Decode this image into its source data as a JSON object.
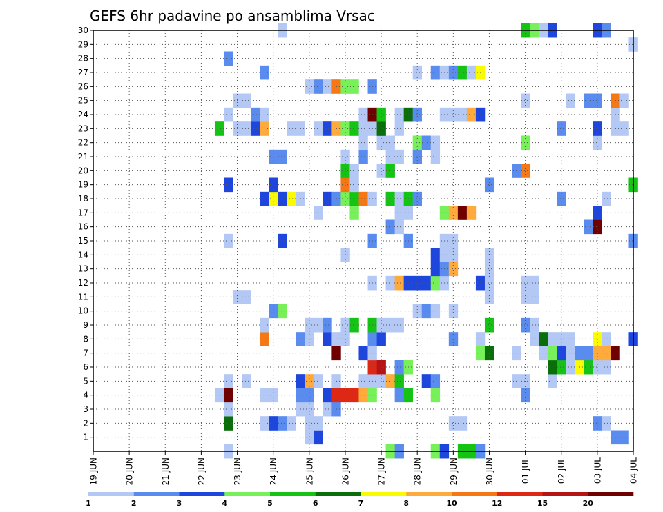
{
  "chart_data": {
    "type": "heatmap",
    "title": "GEFS 6hr padavine po ansamblima Vrsac",
    "x_start": "2025-06-19 00:00",
    "x_end": "2025-07-04 00:00",
    "x_tick_labels": [
      "19 JUN",
      "20 JUN",
      "21 JUN",
      "22 JUN",
      "23 JUN",
      "24 JUN",
      "25 JUN",
      "26 JUN",
      "27 JUN",
      "28 JUN",
      "29 JUN",
      "30 JUN",
      "01 JUL",
      "02 JUL",
      "03 JUL",
      "04 JUL"
    ],
    "y_ticks": [
      1,
      2,
      3,
      4,
      5,
      6,
      7,
      8,
      9,
      10,
      11,
      12,
      13,
      14,
      15,
      16,
      17,
      18,
      19,
      20,
      21,
      22,
      23,
      24,
      25,
      26,
      27,
      28,
      29,
      30
    ],
    "ylim": [
      0,
      30
    ],
    "grid": true,
    "legend": {
      "position": "bottom",
      "levels": [
        "1",
        "2",
        "3",
        "4",
        "5",
        "6",
        "7",
        "8",
        "10",
        "12",
        "15",
        "20"
      ],
      "colors": [
        "#b4c8f5",
        "#5a8cf0",
        "#1e46dc",
        "#78f05a",
        "#14c314",
        "#0a6e0a",
        "#fafa00",
        "#ffaa3c",
        "#f57814",
        "#dc2814",
        "#b41414",
        "#6e0000"
      ]
    },
    "cells": [
      [
        "06-22 18:00",
        0,
        0
      ],
      [
        "06-27 06:00",
        0,
        3
      ],
      [
        "06-27 12:00",
        0,
        1
      ],
      [
        "06-28 12:00",
        0,
        3
      ],
      [
        "06-28 18:00",
        0,
        2
      ],
      [
        "06-29 06:00",
        0,
        4
      ],
      [
        "06-29 12:00",
        0,
        4
      ],
      [
        "06-29 18:00",
        0,
        1
      ],
      [
        "06-25 00:00",
        1,
        0
      ],
      [
        "06-25 06:00",
        1,
        2
      ],
      [
        "07-03 12:00",
        1,
        1
      ],
      [
        "07-03 18:00",
        1,
        1
      ],
      [
        "06-22 18:00",
        2,
        5
      ],
      [
        "06-23 18:00",
        2,
        0
      ],
      [
        "06-24 00:00",
        2,
        2
      ],
      [
        "06-24 06:00",
        2,
        1
      ],
      [
        "06-24 12:00",
        2,
        0
      ],
      [
        "06-25 00:00",
        2,
        0
      ],
      [
        "06-25 06:00",
        2,
        0
      ],
      [
        "06-29 00:00",
        2,
        0
      ],
      [
        "06-29 06:00",
        2,
        0
      ],
      [
        "07-03 00:00",
        2,
        1
      ],
      [
        "07-03 06:00",
        2,
        0
      ],
      [
        "06-22 18:00",
        3,
        0
      ],
      [
        "06-24 18:00",
        3,
        0
      ],
      [
        "06-25 00:00",
        3,
        0
      ],
      [
        "06-25 12:00",
        3,
        0
      ],
      [
        "06-25 18:00",
        3,
        1
      ],
      [
        "06-22 12:00",
        4,
        0
      ],
      [
        "06-22 18:00",
        4,
        11
      ],
      [
        "06-23 18:00",
        4,
        0
      ],
      [
        "06-24 00:00",
        4,
        0
      ],
      [
        "06-24 18:00",
        4,
        1
      ],
      [
        "06-25 00:00",
        4,
        1
      ],
      [
        "06-25 12:00",
        4,
        2
      ],
      [
        "06-25 18:00",
        4,
        9
      ],
      [
        "06-26 00:00",
        4,
        9
      ],
      [
        "06-26 06:00",
        4,
        9
      ],
      [
        "06-26 12:00",
        4,
        7
      ],
      [
        "06-26 18:00",
        4,
        3
      ],
      [
        "06-27 12:00",
        4,
        1
      ],
      [
        "06-27 18:00",
        4,
        4
      ],
      [
        "06-28 12:00",
        4,
        3
      ],
      [
        "07-01 00:00",
        4,
        1
      ],
      [
        "06-22 18:00",
        5,
        0
      ],
      [
        "06-23 06:00",
        5,
        0
      ],
      [
        "06-24 18:00",
        5,
        2
      ],
      [
        "06-25 00:00",
        5,
        7
      ],
      [
        "06-25 06:00",
        5,
        0
      ],
      [
        "06-25 18:00",
        5,
        0
      ],
      [
        "06-26 12:00",
        5,
        0
      ],
      [
        "06-26 18:00",
        5,
        0
      ],
      [
        "06-27 00:00",
        5,
        0
      ],
      [
        "06-27 06:00",
        5,
        7
      ],
      [
        "06-27 12:00",
        5,
        4
      ],
      [
        "06-28 06:00",
        5,
        2
      ],
      [
        "06-28 12:00",
        5,
        1
      ],
      [
        "06-30 18:00",
        5,
        0
      ],
      [
        "07-01 00:00",
        5,
        0
      ],
      [
        "07-01 18:00",
        5,
        0
      ],
      [
        "06-26 18:00",
        6,
        9
      ],
      [
        "06-27 00:00",
        6,
        10
      ],
      [
        "06-27 12:00",
        6,
        1
      ],
      [
        "06-27 18:00",
        6,
        3
      ],
      [
        "07-01 18:00",
        6,
        5
      ],
      [
        "07-02 00:00",
        6,
        4
      ],
      [
        "07-02 06:00",
        6,
        0
      ],
      [
        "07-02 12:00",
        6,
        6
      ],
      [
        "07-02 18:00",
        6,
        4
      ],
      [
        "07-03 00:00",
        6,
        0
      ],
      [
        "07-03 06:00",
        6,
        0
      ],
      [
        "06-25 18:00",
        7,
        11
      ],
      [
        "06-26 12:00",
        7,
        2
      ],
      [
        "06-26 18:00",
        7,
        0
      ],
      [
        "06-29 18:00",
        7,
        3
      ],
      [
        "06-30 00:00",
        7,
        5
      ],
      [
        "06-30 18:00",
        7,
        0
      ],
      [
        "07-01 12:00",
        7,
        0
      ],
      [
        "07-01 18:00",
        7,
        3
      ],
      [
        "07-02 00:00",
        7,
        2
      ],
      [
        "07-02 06:00",
        7,
        0
      ],
      [
        "07-02 12:00",
        7,
        1
      ],
      [
        "07-02 18:00",
        7,
        1
      ],
      [
        "07-03 00:00",
        7,
        7
      ],
      [
        "07-03 06:00",
        7,
        7
      ],
      [
        "07-03 12:00",
        7,
        11
      ],
      [
        "06-23 18:00",
        8,
        8
      ],
      [
        "06-24 18:00",
        8,
        1
      ],
      [
        "06-25 00:00",
        8,
        0
      ],
      [
        "06-25 12:00",
        8,
        2
      ],
      [
        "06-25 18:00",
        8,
        0
      ],
      [
        "06-26 00:00",
        8,
        0
      ],
      [
        "06-26 18:00",
        8,
        1
      ],
      [
        "06-27 00:00",
        8,
        2
      ],
      [
        "06-29 00:00",
        8,
        1
      ],
      [
        "06-29 18:00",
        8,
        0
      ],
      [
        "07-01 06:00",
        8,
        0
      ],
      [
        "07-01 12:00",
        8,
        5
      ],
      [
        "07-01 18:00",
        8,
        0
      ],
      [
        "07-02 00:00",
        8,
        0
      ],
      [
        "07-02 06:00",
        8,
        0
      ],
      [
        "07-03 00:00",
        8,
        6
      ],
      [
        "07-03 06:00",
        8,
        0
      ],
      [
        "07-04 00:00",
        8,
        2
      ],
      [
        "06-23 18:00",
        9,
        0
      ],
      [
        "06-25 00:00",
        9,
        0
      ],
      [
        "06-25 06:00",
        9,
        0
      ],
      [
        "06-25 12:00",
        9,
        1
      ],
      [
        "06-26 00:00",
        9,
        0
      ],
      [
        "06-26 06:00",
        9,
        4
      ],
      [
        "06-26 18:00",
        9,
        4
      ],
      [
        "06-27 00:00",
        9,
        0
      ],
      [
        "06-27 06:00",
        9,
        0
      ],
      [
        "06-27 12:00",
        9,
        0
      ],
      [
        "06-30 00:00",
        9,
        4
      ],
      [
        "07-01 00:00",
        9,
        1
      ],
      [
        "07-01 06:00",
        9,
        0
      ],
      [
        "06-24 00:00",
        10,
        1
      ],
      [
        "06-24 06:00",
        10,
        3
      ],
      [
        "06-28 00:00",
        10,
        0
      ],
      [
        "06-28 06:00",
        10,
        1
      ],
      [
        "06-28 12:00",
        10,
        0
      ],
      [
        "06-29 00:00",
        10,
        0
      ],
      [
        "06-23 00:00",
        11,
        0
      ],
      [
        "06-23 06:00",
        11,
        0
      ],
      [
        "06-30 00:00",
        11,
        0
      ],
      [
        "07-01 00:00",
        11,
        0
      ],
      [
        "07-01 06:00",
        11,
        0
      ],
      [
        "06-26 18:00",
        12,
        0
      ],
      [
        "06-27 06:00",
        12,
        0
      ],
      [
        "06-27 12:00",
        12,
        7
      ],
      [
        "06-27 18:00",
        12,
        2
      ],
      [
        "06-28 00:00",
        12,
        2
      ],
      [
        "06-28 06:00",
        12,
        2
      ],
      [
        "06-28 12:00",
        12,
        3
      ],
      [
        "06-28 18:00",
        12,
        0
      ],
      [
        "06-29 18:00",
        12,
        2
      ],
      [
        "06-30 00:00",
        12,
        0
      ],
      [
        "07-01 00:00",
        12,
        0
      ],
      [
        "07-01 06:00",
        12,
        0
      ],
      [
        "06-28 12:00",
        13,
        2
      ],
      [
        "06-28 18:00",
        13,
        1
      ],
      [
        "06-29 00:00",
        13,
        7
      ],
      [
        "06-30 00:00",
        13,
        0
      ],
      [
        "06-26 00:00",
        14,
        0
      ],
      [
        "06-28 12:00",
        14,
        2
      ],
      [
        "06-28 18:00",
        14,
        0
      ],
      [
        "06-29 00:00",
        14,
        0
      ],
      [
        "06-30 00:00",
        14,
        0
      ],
      [
        "06-22 18:00",
        15,
        0
      ],
      [
        "06-24 06:00",
        15,
        2
      ],
      [
        "06-26 18:00",
        15,
        1
      ],
      [
        "06-27 18:00",
        15,
        1
      ],
      [
        "06-28 18:00",
        15,
        0
      ],
      [
        "06-29 00:00",
        15,
        0
      ],
      [
        "07-04 00:00",
        15,
        1
      ],
      [
        "06-27 06:00",
        16,
        1
      ],
      [
        "06-27 12:00",
        16,
        0
      ],
      [
        "07-02 18:00",
        16,
        1
      ],
      [
        "07-03 00:00",
        16,
        11
      ],
      [
        "06-25 06:00",
        17,
        0
      ],
      [
        "06-26 06:00",
        17,
        3
      ],
      [
        "06-27 12:00",
        17,
        0
      ],
      [
        "06-27 18:00",
        17,
        0
      ],
      [
        "06-28 18:00",
        17,
        3
      ],
      [
        "06-29 00:00",
        17,
        7
      ],
      [
        "06-29 06:00",
        17,
        11
      ],
      [
        "06-29 12:00",
        17,
        7
      ],
      [
        "07-03 00:00",
        17,
        2
      ],
      [
        "06-23 18:00",
        18,
        2
      ],
      [
        "06-24 00:00",
        18,
        6
      ],
      [
        "06-24 06:00",
        18,
        2
      ],
      [
        "06-24 12:00",
        18,
        6
      ],
      [
        "06-24 18:00",
        18,
        0
      ],
      [
        "06-25 12:00",
        18,
        2
      ],
      [
        "06-25 18:00",
        18,
        1
      ],
      [
        "06-26 00:00",
        18,
        3
      ],
      [
        "06-26 06:00",
        18,
        4
      ],
      [
        "06-26 12:00",
        18,
        8
      ],
      [
        "06-26 18:00",
        18,
        0
      ],
      [
        "06-27 06:00",
        18,
        4
      ],
      [
        "06-27 12:00",
        18,
        0
      ],
      [
        "06-27 18:00",
        18,
        4
      ],
      [
        "06-28 00:00",
        18,
        1
      ],
      [
        "07-02 00:00",
        18,
        1
      ],
      [
        "07-03 06:00",
        18,
        0
      ],
      [
        "06-22 18:00",
        19,
        2
      ],
      [
        "06-24 00:00",
        19,
        2
      ],
      [
        "06-26 00:00",
        19,
        8
      ],
      [
        "06-26 06:00",
        19,
        0
      ],
      [
        "06-30 00:00",
        19,
        1
      ],
      [
        "07-04 00:00",
        19,
        4
      ],
      [
        "06-26 00:00",
        20,
        4
      ],
      [
        "06-26 06:00",
        20,
        0
      ],
      [
        "06-27 00:00",
        20,
        0
      ],
      [
        "06-27 06:00",
        20,
        4
      ],
      [
        "06-30 18:00",
        20,
        1
      ],
      [
        "07-01 00:00",
        20,
        8
      ],
      [
        "06-24 00:00",
        21,
        1
      ],
      [
        "06-24 06:00",
        21,
        1
      ],
      [
        "06-26 00:00",
        21,
        0
      ],
      [
        "06-26 12:00",
        21,
        1
      ],
      [
        "06-27 06:00",
        21,
        0
      ],
      [
        "06-27 12:00",
        21,
        0
      ],
      [
        "06-28 00:00",
        21,
        1
      ],
      [
        "06-28 12:00",
        21,
        0
      ],
      [
        "06-26 12:00",
        22,
        0
      ],
      [
        "06-27 00:00",
        22,
        0
      ],
      [
        "06-27 06:00",
        22,
        0
      ],
      [
        "06-28 00:00",
        22,
        3
      ],
      [
        "06-28 06:00",
        22,
        1
      ],
      [
        "06-28 12:00",
        22,
        0
      ],
      [
        "07-01 00:00",
        22,
        3
      ],
      [
        "07-03 00:00",
        22,
        0
      ],
      [
        "06-22 12:00",
        23,
        4
      ],
      [
        "06-23 00:00",
        23,
        0
      ],
      [
        "06-23 06:00",
        23,
        0
      ],
      [
        "06-23 12:00",
        23,
        2
      ],
      [
        "06-23 18:00",
        23,
        7
      ],
      [
        "06-24 12:00",
        23,
        0
      ],
      [
        "06-24 18:00",
        23,
        0
      ],
      [
        "06-25 06:00",
        23,
        0
      ],
      [
        "06-25 12:00",
        23,
        2
      ],
      [
        "06-25 18:00",
        23,
        7
      ],
      [
        "06-26 00:00",
        23,
        3
      ],
      [
        "06-26 06:00",
        23,
        4
      ],
      [
        "06-26 12:00",
        23,
        0
      ],
      [
        "06-26 18:00",
        23,
        0
      ],
      [
        "06-27 00:00",
        23,
        5
      ],
      [
        "06-27 12:00",
        23,
        0
      ],
      [
        "07-02 00:00",
        23,
        1
      ],
      [
        "07-03 00:00",
        23,
        2
      ],
      [
        "07-03 12:00",
        23,
        0
      ],
      [
        "07-03 18:00",
        23,
        0
      ],
      [
        "06-22 18:00",
        24,
        0
      ],
      [
        "06-23 12:00",
        24,
        1
      ],
      [
        "06-23 18:00",
        24,
        0
      ],
      [
        "06-26 12:00",
        24,
        0
      ],
      [
        "06-26 18:00",
        24,
        11
      ],
      [
        "06-27 00:00",
        24,
        4
      ],
      [
        "06-27 12:00",
        24,
        0
      ],
      [
        "06-27 18:00",
        24,
        5
      ],
      [
        "06-28 00:00",
        24,
        1
      ],
      [
        "06-28 18:00",
        24,
        0
      ],
      [
        "06-29 00:00",
        24,
        0
      ],
      [
        "06-29 06:00",
        24,
        0
      ],
      [
        "06-29 12:00",
        24,
        7
      ],
      [
        "06-29 18:00",
        24,
        2
      ],
      [
        "07-03 12:00",
        24,
        0
      ],
      [
        "06-23 00:00",
        25,
        0
      ],
      [
        "06-23 06:00",
        25,
        0
      ],
      [
        "07-01 00:00",
        25,
        0
      ],
      [
        "07-02 06:00",
        25,
        0
      ],
      [
        "07-02 18:00",
        25,
        1
      ],
      [
        "07-03 00:00",
        25,
        1
      ],
      [
        "07-03 12:00",
        25,
        8
      ],
      [
        "07-03 18:00",
        25,
        0
      ],
      [
        "06-25 00:00",
        26,
        0
      ],
      [
        "06-25 06:00",
        26,
        1
      ],
      [
        "06-25 12:00",
        26,
        0
      ],
      [
        "06-25 18:00",
        26,
        8
      ],
      [
        "06-26 00:00",
        26,
        3
      ],
      [
        "06-26 06:00",
        26,
        3
      ],
      [
        "06-26 18:00",
        26,
        1
      ],
      [
        "06-23 18:00",
        27,
        1
      ],
      [
        "06-28 00:00",
        27,
        0
      ],
      [
        "06-28 12:00",
        27,
        1
      ],
      [
        "06-28 18:00",
        27,
        0
      ],
      [
        "06-29 00:00",
        27,
        1
      ],
      [
        "06-29 06:00",
        27,
        4
      ],
      [
        "06-29 12:00",
        27,
        0
      ],
      [
        "06-29 18:00",
        27,
        6
      ],
      [
        "06-22 18:00",
        28,
        1
      ],
      [
        "07-04 00:00",
        29,
        0
      ],
      [
        "06-24 06:00",
        30,
        0
      ],
      [
        "07-01 00:00",
        30,
        4
      ],
      [
        "07-01 06:00",
        30,
        3
      ],
      [
        "07-01 12:00",
        30,
        0
      ],
      [
        "07-01 18:00",
        30,
        2
      ],
      [
        "07-03 00:00",
        30,
        2
      ],
      [
        "07-03 06:00",
        30,
        1
      ]
    ]
  }
}
